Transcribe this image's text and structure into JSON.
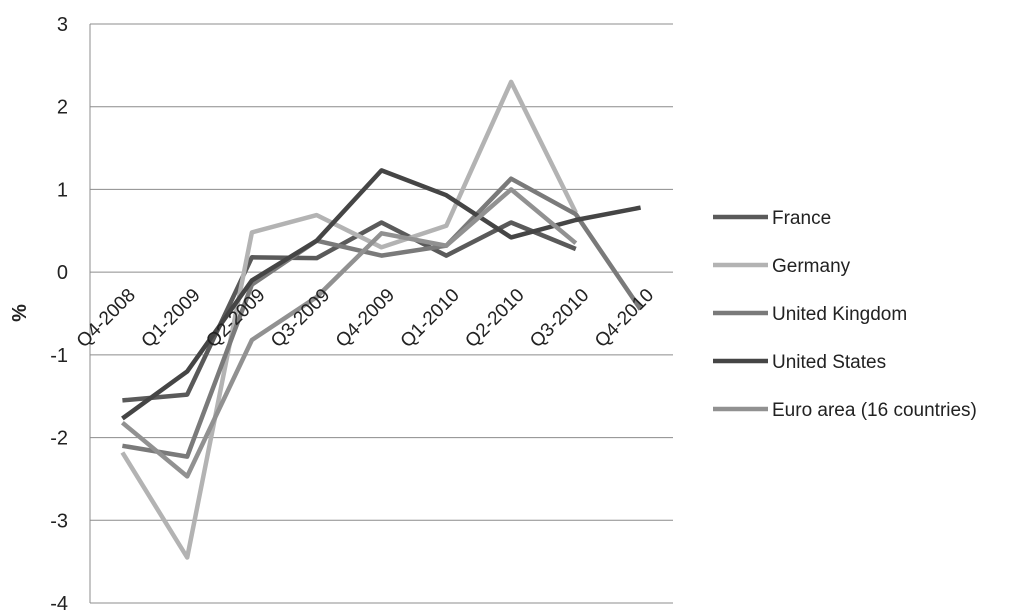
{
  "chart_data": {
    "type": "line",
    "ylabel": "%",
    "ylim": [
      -4,
      3
    ],
    "yticks": [
      -4,
      -3,
      -2,
      -1,
      0,
      1,
      2,
      3
    ],
    "ytick_labels": [
      "-4",
      "-3",
      "-2",
      "-1",
      "0",
      "1",
      "2",
      "3"
    ],
    "categories": [
      "Q4-2008",
      "Q1-2009",
      "Q2-2009",
      "Q3-2009",
      "Q4-2009",
      "Q1-2010",
      "Q2-2010",
      "Q3-2010",
      "Q4-2010"
    ],
    "grid": true,
    "legend_position": "right",
    "series": [
      {
        "name": "France",
        "color": "#5a5a5a",
        "values": [
          -1.55,
          -1.48,
          0.18,
          0.17,
          0.6,
          0.2,
          0.6,
          0.28,
          null
        ]
      },
      {
        "name": "Germany",
        "color": "#b3b3b3",
        "values": [
          -2.18,
          -3.45,
          0.48,
          0.69,
          0.3,
          0.56,
          2.3,
          0.72,
          null
        ]
      },
      {
        "name": "United Kingdom",
        "color": "#7a7a7a",
        "values": [
          -2.1,
          -2.23,
          -0.15,
          0.38,
          0.2,
          0.32,
          1.13,
          0.7,
          -0.45
        ]
      },
      {
        "name": "United States",
        "color": "#454545",
        "values": [
          -1.77,
          -1.2,
          -0.1,
          0.38,
          1.23,
          0.93,
          0.42,
          0.63,
          0.78
        ]
      },
      {
        "name": "Euro area (16 countries)",
        "color": "#919191",
        "values": [
          -1.82,
          -2.47,
          -0.82,
          -0.3,
          0.47,
          0.32,
          1.0,
          0.35,
          null
        ]
      }
    ]
  }
}
